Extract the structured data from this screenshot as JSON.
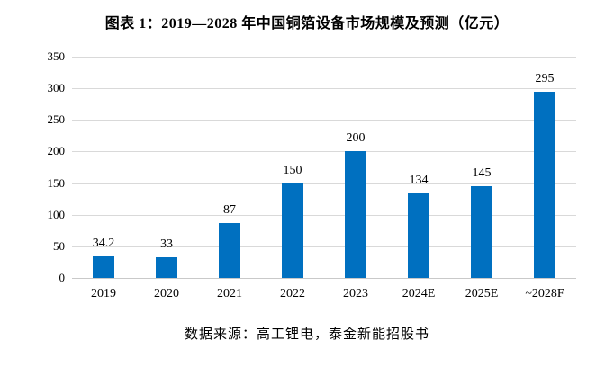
{
  "chart_data": {
    "type": "bar",
    "title": "图表 1：2019—2028 年中国铜箔设备市场规模及预测（亿元）",
    "categories": [
      "2019",
      "2020",
      "2021",
      "2022",
      "2023",
      "2024E",
      "2025E",
      "~2028F"
    ],
    "values": [
      34.2,
      33,
      87,
      150,
      200,
      134,
      145,
      295
    ],
    "value_labels": [
      "34.2",
      "33",
      "87",
      "150",
      "200",
      "134",
      "145",
      "295"
    ],
    "xlabel": "",
    "ylabel": "",
    "ylim": [
      0,
      350
    ],
    "yticks": [
      0,
      50,
      100,
      150,
      200,
      250,
      300,
      350
    ],
    "grid": "horizontal",
    "legend_position": "none",
    "bar_color": "#0070C0",
    "gridline_color": "#D9D9D9"
  },
  "source_note": "数据来源：高工锂电，泰金新能招股书"
}
